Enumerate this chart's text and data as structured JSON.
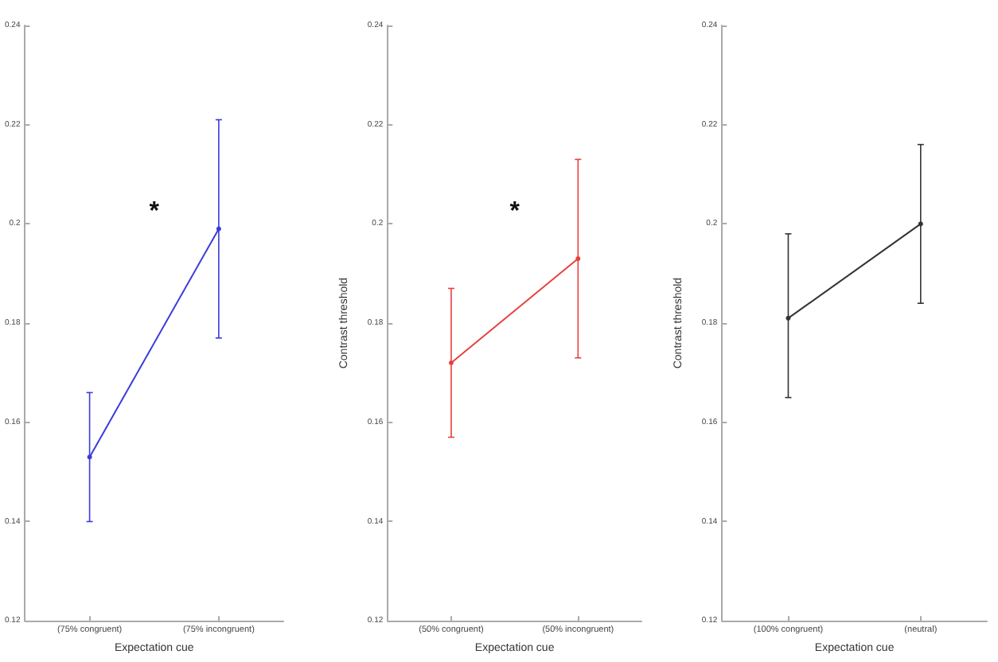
{
  "chart_data": [
    {
      "type": "line",
      "xlabel": "Expectation cue",
      "categories": [
        "(75% congruent)",
        "(75% incongruent)"
      ],
      "series": [
        {
          "color": "#3b3bdb",
          "values": [
            0.153,
            0.199
          ],
          "errors": [
            [
              0.14,
              0.166
            ],
            [
              0.177,
              0.221
            ]
          ]
        }
      ],
      "ylim": [
        0.12,
        0.24
      ],
      "yticks": [
        0.12,
        0.14,
        0.16,
        0.18,
        0.2,
        0.22,
        0.24
      ],
      "marker": "circle",
      "line_style": "solid",
      "grid": false,
      "annotations": [
        "*"
      ]
    },
    {
      "type": "line",
      "xlabel": "Expectation cue",
      "ylabel": "Contrast threshold",
      "categories": [
        "(50% congruent)",
        "(50% incongruent)"
      ],
      "series": [
        {
          "color": "#e8403f",
          "values": [
            0.172,
            0.193
          ],
          "errors": [
            [
              0.157,
              0.187
            ],
            [
              0.173,
              0.213
            ]
          ]
        }
      ],
      "ylim": [
        0.12,
        0.24
      ],
      "yticks": [
        0.12,
        0.14,
        0.16,
        0.18,
        0.2,
        0.22,
        0.24
      ],
      "marker": "circle",
      "line_style": "solid",
      "grid": false,
      "annotations": [
        "*"
      ]
    },
    {
      "type": "line",
      "xlabel": "Expectation cue",
      "ylabel": "Contrast threshold",
      "categories": [
        "(100% congruent)",
        "(neutral)"
      ],
      "series": [
        {
          "color": "#333333",
          "values": [
            0.181,
            0.2
          ],
          "errors": [
            [
              0.165,
              0.198
            ],
            [
              0.184,
              0.216
            ]
          ]
        }
      ],
      "ylim": [
        0.12,
        0.24
      ],
      "yticks": [
        0.12,
        0.14,
        0.16,
        0.18,
        0.2,
        0.22,
        0.24
      ],
      "marker": "circle",
      "line_style": "solid",
      "grid": false
    }
  ]
}
